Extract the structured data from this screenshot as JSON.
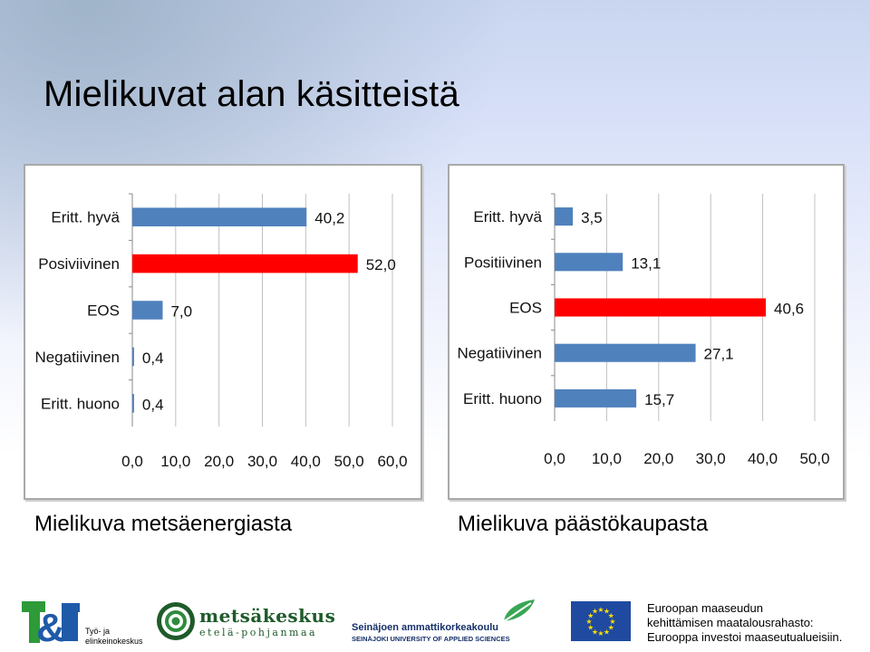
{
  "slide": {
    "title": "Mielikuvat alan käsitteistä",
    "caption_left": "Mielikuva metsäenergiasta",
    "caption_right": "Mielikuva päästökaupasta"
  },
  "colors": {
    "default_bar": "#4f81bd",
    "highlight_bar": "#ff0000",
    "grid": "#c0c0c0"
  },
  "chart_data": [
    {
      "type": "bar",
      "orientation": "horizontal",
      "title": "",
      "categories": [
        "Eritt. hyvä",
        "Posiviivinen",
        "EOS",
        "Negatiivinen",
        "Eritt. huono"
      ],
      "values": [
        40.2,
        52.0,
        7.0,
        0.4,
        0.4
      ],
      "value_labels": [
        "40,2",
        "52,0",
        "7,0",
        "0,4",
        "0,4"
      ],
      "highlight_index": 1,
      "xlim": [
        0,
        60
      ],
      "ticks": [
        0,
        10,
        20,
        30,
        40,
        50,
        60
      ],
      "tick_labels": [
        "0,0",
        "10,0",
        "20,0",
        "30,0",
        "40,0",
        "50,0",
        "60,0"
      ],
      "grid": true
    },
    {
      "type": "bar",
      "orientation": "horizontal",
      "title": "",
      "categories": [
        "Eritt. hyvä",
        "Positiivinen",
        "EOS",
        "Negatiivinen",
        "Eritt. huono"
      ],
      "values": [
        3.5,
        13.1,
        40.6,
        27.1,
        15.7
      ],
      "value_labels": [
        "3,5",
        "13,1",
        "40,6",
        "27,1",
        "15,7"
      ],
      "highlight_index": 2,
      "xlim": [
        0,
        50
      ],
      "ticks": [
        0,
        10,
        20,
        30,
        40,
        50
      ],
      "tick_labels": [
        "0,0",
        "10,0",
        "20,0",
        "30,0",
        "40,0",
        "50,0"
      ],
      "grid": true
    }
  ],
  "footer": {
    "te_logo": {
      "mark": "T&E",
      "text_line1": "Työ- ja",
      "text_line2": "elinkeinokeskus"
    },
    "metsakeskus": {
      "name": "metsäkeskus",
      "sub": "etelä-pohjanmaa"
    },
    "seamk": {
      "line1": "Seinäjoen ammattikorkeakoulu",
      "line2": "SEINÄJOKI UNIVERSITY OF APPLIED SCIENCES"
    },
    "eu": {
      "line1": "Euroopan maaseudun",
      "line2": "kehittämisen maatalousrahasto:",
      "line3": "Eurooppa investoi maaseutualueisiin."
    }
  }
}
